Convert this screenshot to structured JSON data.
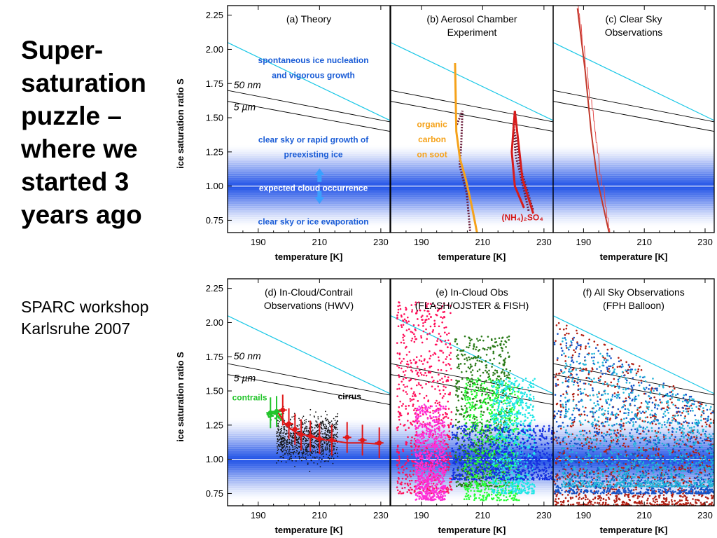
{
  "slide": {
    "title": "Super-\nsaturation\npuzzle –\nwhere we\nstarted 3\nyears ago",
    "subtitle": "SPARC workshop\nKarlsruhe 2007"
  },
  "colors": {
    "band": "#1d4fe6",
    "homog": "#19c7e6",
    "sat": "#ffffff",
    "org": "#f5a21a",
    "amm": "#d61c1c",
    "dots": "#6b1f3c",
    "contrail": "#22c42a"
  },
  "chart_data": [
    {
      "id": "a",
      "type": "line",
      "title": [
        "(a) Theory"
      ],
      "xlabel": "temperature [K]",
      "ylabel": "ice saturation ratio S",
      "xlim": [
        180,
        233
      ],
      "ylim": [
        0.66,
        2.32
      ],
      "xticks": [
        190,
        210,
        230
      ],
      "yticks": [
        0.75,
        1.0,
        1.25,
        1.5,
        1.75,
        2.0,
        2.25
      ],
      "series": [
        {
          "name": "50 nm",
          "x": [
            180,
            233
          ],
          "y": [
            1.7,
            1.47
          ]
        },
        {
          "name": "5 µm",
          "x": [
            180,
            233
          ],
          "y": [
            1.62,
            1.4
          ]
        }
      ],
      "annotations": [
        {
          "text": "spontaneous ice nucleation",
          "color": "#1a5cd6"
        },
        {
          "text": "and vigorous growth",
          "color": "#1a5cd6"
        },
        {
          "text": "clear sky or rapid growth of",
          "color": "#1a5cd6"
        },
        {
          "text": "preexisting ice",
          "color": "#1a5cd6"
        },
        {
          "text": "expected cloud occurrence",
          "color": "#ffffff"
        },
        {
          "text": "clear sky or ice evaporation",
          "color": "#1a5cd6"
        }
      ]
    },
    {
      "id": "b",
      "type": "line",
      "title": [
        "(b) Aerosol Chamber",
        "Experiment"
      ],
      "xlabel": "temperature [K]",
      "xlim": [
        180,
        233
      ],
      "ylim": [
        0.66,
        2.32
      ],
      "xticks": [
        190,
        210,
        230
      ],
      "series": [
        {
          "name": "organic carbon on soot",
          "x": [
            201.0,
            201.4,
            202.6,
            204.5,
            206.5,
            208.5
          ],
          "y": [
            1.9,
            1.4,
            1.2,
            1.05,
            0.85,
            0.62
          ]
        },
        {
          "name": "(NH4)2SO4",
          "x": [
            223.5,
            220.5,
            219.5,
            220.5,
            223.0,
            226.5
          ],
          "y": [
            0.84,
            1.0,
            1.25,
            1.55,
            1.05,
            0.8
          ]
        }
      ],
      "labels": [
        {
          "text": "organic",
          "color": "#f5a21a"
        },
        {
          "text": "carbon",
          "color": "#f5a21a"
        },
        {
          "text": "on soot",
          "color": "#f5a21a"
        },
        {
          "text": "(NH₄)₂SO₄",
          "color": "#d61c1c"
        }
      ]
    },
    {
      "id": "c",
      "type": "line",
      "title": [
        "(c) Clear Sky",
        "Observations"
      ],
      "xlabel": "temperature [K]",
      "xlim": [
        180,
        233
      ],
      "ylim": [
        0.66,
        2.32
      ],
      "xticks": [
        190,
        210,
        230
      ],
      "series": [
        {
          "name": "clear sky",
          "x": [
            188.0,
            190.5,
            192.5,
            194.5,
            196.5,
            198.5
          ],
          "y": [
            2.3,
            1.85,
            1.4,
            1.05,
            0.85,
            0.65
          ]
        }
      ]
    },
    {
      "id": "d",
      "type": "scatter",
      "title": [
        "(d) In-Cloud/Contrail",
        "Observations (HWV)"
      ],
      "xlabel": "temperature [K]",
      "ylabel": "ice saturation ratio S",
      "xlim": [
        180,
        233
      ],
      "ylim": [
        0.66,
        2.32
      ],
      "xticks": [
        190,
        210,
        230
      ],
      "yticks": [
        0.75,
        1.0,
        1.25,
        1.5,
        1.75,
        2.0,
        2.25
      ],
      "labels": [
        {
          "text": "50 nm",
          "color": "#000000"
        },
        {
          "text": "5 µm",
          "color": "#000000"
        },
        {
          "text": "contrails",
          "color": "#22c42a"
        },
        {
          "text": "cirrus",
          "color": "#000000"
        }
      ],
      "series": [
        {
          "name": "cirrus",
          "x": [
            196,
            199,
            202,
            205,
            208,
            212,
            216,
            219,
            224,
            230
          ],
          "y": [
            1.36,
            1.25,
            1.2,
            1.18,
            1.16,
            1.14,
            1.13,
            1.12,
            1.12,
            1.11
          ]
        }
      ],
      "binned_means": {
        "x": [
          194,
          196,
          198,
          200,
          202,
          204,
          207,
          210,
          214,
          219,
          224,
          229.5
        ],
        "y": [
          1.34,
          1.35,
          1.36,
          1.26,
          1.22,
          1.18,
          1.17,
          1.15,
          1.14,
          1.16,
          1.14,
          1.12
        ]
      }
    },
    {
      "id": "e",
      "type": "scatter",
      "title": [
        "(e) In-Cloud Obs",
        "(FLASH/OJSTER & FISH)"
      ],
      "xlabel": "temperature [K]",
      "xlim": [
        180,
        233
      ],
      "ylim": [
        0.66,
        2.32
      ],
      "xticks": [
        190,
        210,
        230
      ],
      "series": [
        {
          "color": "#ff0f5a",
          "x": [
            182,
            200
          ],
          "y": [
            0.75,
            2.15
          ]
        },
        {
          "color": "#ff2fd6",
          "x": [
            188,
            198
          ],
          "y": [
            0.7,
            1.4
          ]
        },
        {
          "color": "#2a7a18",
          "x": [
            201,
            219
          ],
          "y": [
            0.8,
            1.9
          ]
        },
        {
          "color": "#23ff32",
          "x": [
            204,
            222
          ],
          "y": [
            0.7,
            1.6
          ]
        },
        {
          "color": "#20e6e6",
          "x": [
            213,
            227
          ],
          "y": [
            0.75,
            1.6
          ]
        },
        {
          "color": "#1530e0",
          "x": [
            200,
            233
          ],
          "y": [
            0.85,
            1.25
          ]
        }
      ]
    },
    {
      "id": "f",
      "type": "scatter",
      "title": [
        "(f) All Sky Observations",
        "(FPH Balloon)"
      ],
      "xlabel": "temperature [K]",
      "xlim": [
        180,
        233
      ],
      "ylim": [
        0.66,
        2.32
      ],
      "xticks": [
        190,
        210,
        230
      ],
      "series": [
        {
          "color": "#b01d10",
          "x": [
            180,
            233
          ],
          "y": [
            0.66,
            2.0
          ]
        },
        {
          "color": "#1454c8",
          "x": [
            180,
            233
          ],
          "y": [
            0.75,
            1.95
          ]
        },
        {
          "color": "#22b4d8",
          "x": [
            183,
            233
          ],
          "y": [
            0.8,
            1.9
          ]
        }
      ]
    }
  ]
}
